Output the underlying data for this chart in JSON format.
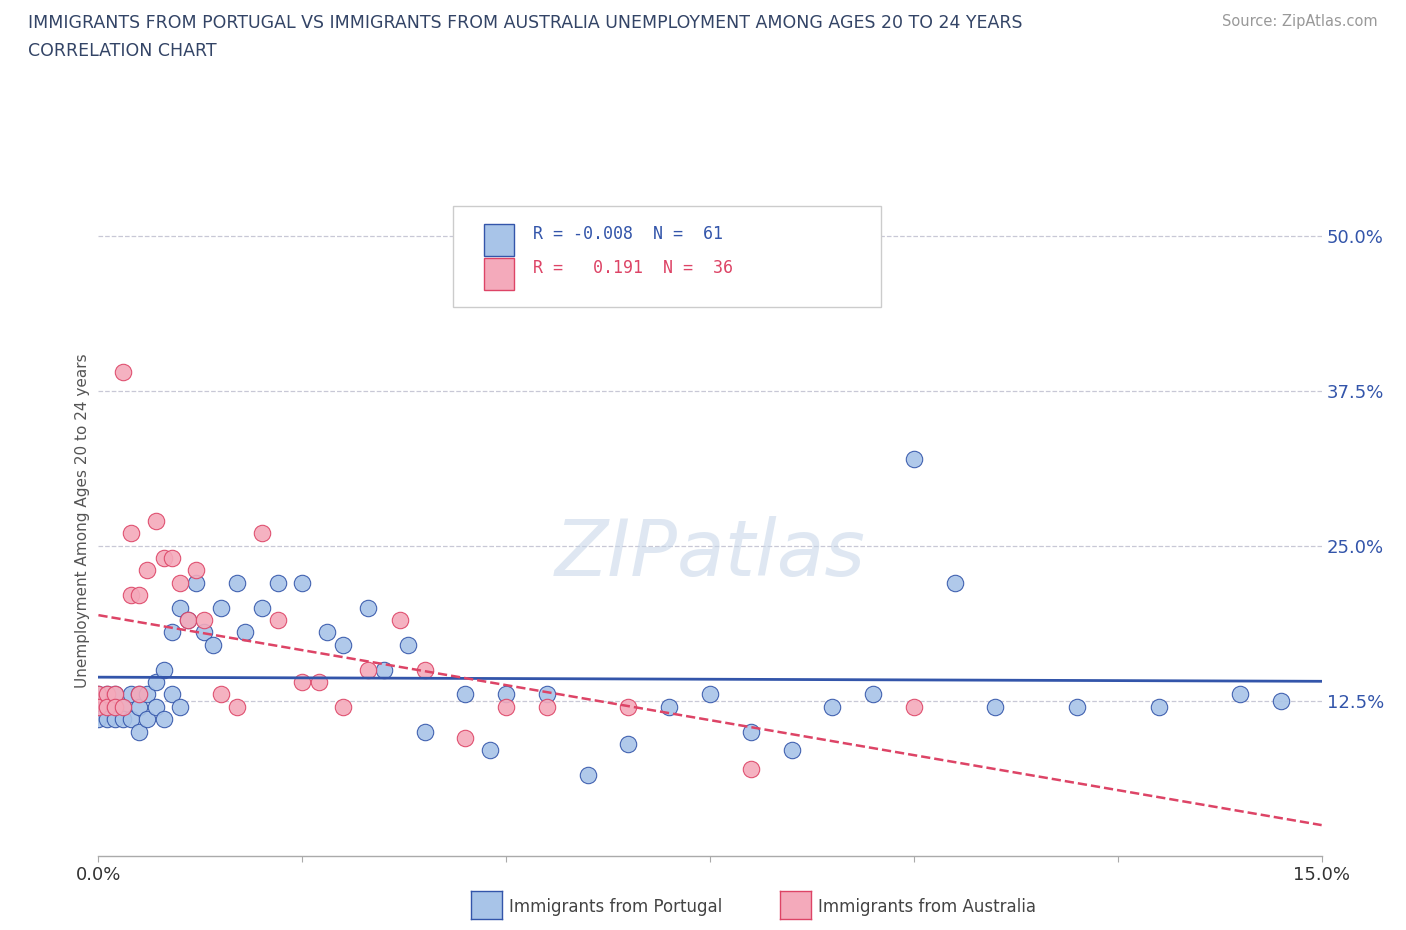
{
  "title_line1": "IMMIGRANTS FROM PORTUGAL VS IMMIGRANTS FROM AUSTRALIA UNEMPLOYMENT AMONG AGES 20 TO 24 YEARS",
  "title_line2": "CORRELATION CHART",
  "source": "Source: ZipAtlas.com",
  "ylabel": "Unemployment Among Ages 20 to 24 years",
  "xlim": [
    0.0,
    0.15
  ],
  "ylim": [
    0.0,
    0.54
  ],
  "ytick_positions": [
    0.125,
    0.25,
    0.375,
    0.5
  ],
  "ytick_labels": [
    "12.5%",
    "25.0%",
    "37.5%",
    "50.0%"
  ],
  "color_portugal": "#A8C4E8",
  "color_australia": "#F4AABB",
  "trendline_color_portugal": "#3355AA",
  "trendline_color_australia": "#DD4466",
  "background_color": "#FFFFFF",
  "grid_color": "#BBBBCC",
  "portugal_x": [
    0.0,
    0.0,
    0.0,
    0.001,
    0.001,
    0.001,
    0.002,
    0.002,
    0.002,
    0.003,
    0.003,
    0.004,
    0.004,
    0.005,
    0.005,
    0.005,
    0.006,
    0.006,
    0.007,
    0.007,
    0.008,
    0.008,
    0.009,
    0.009,
    0.01,
    0.01,
    0.011,
    0.012,
    0.013,
    0.014,
    0.015,
    0.017,
    0.018,
    0.02,
    0.022,
    0.025,
    0.028,
    0.03,
    0.033,
    0.035,
    0.038,
    0.04,
    0.045,
    0.048,
    0.05,
    0.055,
    0.06,
    0.065,
    0.07,
    0.075,
    0.08,
    0.085,
    0.09,
    0.095,
    0.1,
    0.105,
    0.11,
    0.12,
    0.13,
    0.14,
    0.145
  ],
  "portugal_y": [
    0.13,
    0.12,
    0.11,
    0.13,
    0.12,
    0.11,
    0.13,
    0.12,
    0.11,
    0.12,
    0.11,
    0.13,
    0.11,
    0.13,
    0.12,
    0.1,
    0.13,
    0.11,
    0.14,
    0.12,
    0.15,
    0.11,
    0.18,
    0.13,
    0.2,
    0.12,
    0.19,
    0.22,
    0.18,
    0.17,
    0.2,
    0.22,
    0.18,
    0.2,
    0.22,
    0.22,
    0.18,
    0.17,
    0.2,
    0.15,
    0.17,
    0.1,
    0.13,
    0.085,
    0.13,
    0.13,
    0.065,
    0.09,
    0.12,
    0.13,
    0.1,
    0.085,
    0.12,
    0.13,
    0.32,
    0.22,
    0.12,
    0.12,
    0.12,
    0.13,
    0.125
  ],
  "australia_x": [
    0.0,
    0.0,
    0.001,
    0.001,
    0.002,
    0.002,
    0.003,
    0.003,
    0.004,
    0.004,
    0.005,
    0.005,
    0.006,
    0.007,
    0.008,
    0.009,
    0.01,
    0.011,
    0.012,
    0.013,
    0.015,
    0.017,
    0.02,
    0.022,
    0.025,
    0.027,
    0.03,
    0.033,
    0.037,
    0.04,
    0.045,
    0.05,
    0.055,
    0.065,
    0.08,
    0.1
  ],
  "australia_y": [
    0.13,
    0.12,
    0.13,
    0.12,
    0.13,
    0.12,
    0.39,
    0.12,
    0.26,
    0.21,
    0.13,
    0.21,
    0.23,
    0.27,
    0.24,
    0.24,
    0.22,
    0.19,
    0.23,
    0.19,
    0.13,
    0.12,
    0.26,
    0.19,
    0.14,
    0.14,
    0.12,
    0.15,
    0.19,
    0.15,
    0.095,
    0.12,
    0.12,
    0.12,
    0.07,
    0.12
  ]
}
